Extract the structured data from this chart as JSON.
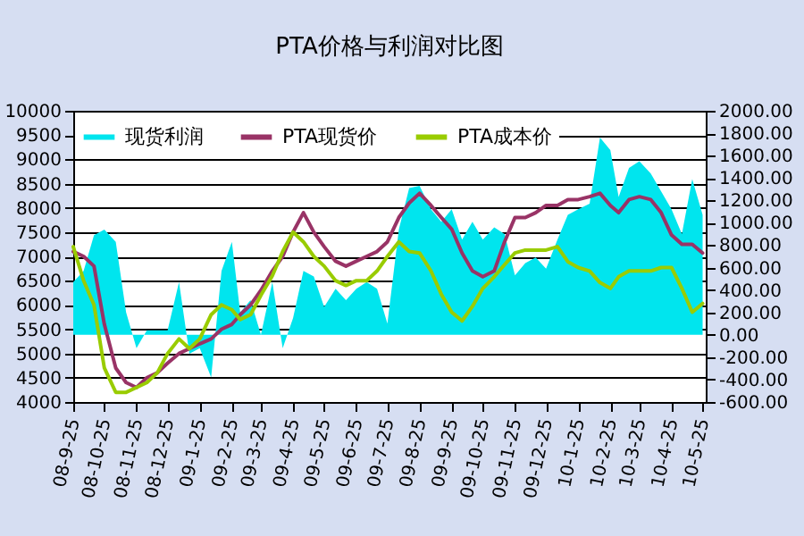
{
  "chart_data": {
    "type": "line",
    "title": "PTA价格与利润对比图",
    "x": [
      "2008-09-25",
      "2008-10-05",
      "2008-10-15",
      "2008-10-25",
      "2008-11-05",
      "2008-11-15",
      "2008-11-25",
      "2008-12-05",
      "2008-12-15",
      "2008-12-25",
      "2009-01-05",
      "2009-01-15",
      "2009-01-25",
      "2009-02-05",
      "2009-02-15",
      "2009-02-25",
      "2009-03-05",
      "2009-03-15",
      "2009-03-25",
      "2009-04-05",
      "2009-04-15",
      "2009-04-25",
      "2009-05-05",
      "2009-05-15",
      "2009-05-25",
      "2009-06-05",
      "2009-06-15",
      "2009-06-25",
      "2009-07-05",
      "2009-07-15",
      "2009-07-25",
      "2009-08-05",
      "2009-08-15",
      "2009-08-25",
      "2009-09-05",
      "2009-09-15",
      "2009-09-25",
      "2009-10-05",
      "2009-10-15",
      "2009-10-25",
      "2009-11-05",
      "2009-11-15",
      "2009-11-25",
      "2009-12-05",
      "2009-12-15",
      "2009-12-25",
      "2010-01-05",
      "2010-01-15",
      "2010-01-25",
      "2010-02-05",
      "2010-02-15",
      "2010-02-25",
      "2010-03-05",
      "2010-03-15",
      "2010-03-25",
      "2010-04-05",
      "2010-04-15",
      "2010-04-25",
      "2010-05-05",
      "2010-05-15",
      "2010-05-25"
    ],
    "series": [
      {
        "name": "现货利润",
        "type": "area",
        "axis": "y2",
        "color": "#00e5ee",
        "values": [
          470,
          570,
          890,
          940,
          830,
          200,
          -120,
          40,
          40,
          40,
          470,
          -170,
          -120,
          -380,
          570,
          830,
          200,
          310,
          0,
          470,
          -120,
          150,
          570,
          520,
          250,
          410,
          310,
          410,
          470,
          410,
          100,
          940,
          1310,
          1330,
          1120,
          1010,
          1120,
          850,
          1010,
          850,
          960,
          900,
          530,
          640,
          690,
          590,
          850,
          1070,
          1120,
          1170,
          1760,
          1650,
          1230,
          1490,
          1550,
          1440,
          1280,
          1120,
          900,
          1390,
          1070
        ]
      },
      {
        "name": "PTA现货价",
        "type": "line",
        "color": "#993366",
        "values": [
          7100,
          7000,
          6800,
          5600,
          4700,
          4400,
          4300,
          4500,
          4600,
          4800,
          5000,
          5100,
          5200,
          5300,
          5500,
          5600,
          5800,
          6000,
          6300,
          6700,
          7000,
          7500,
          7900,
          7500,
          7200,
          6900,
          6800,
          6900,
          7000,
          7100,
          7300,
          7800,
          8100,
          8300,
          8050,
          7800,
          7560,
          7070,
          6700,
          6580,
          6700,
          7300,
          7800,
          7800,
          7900,
          8050,
          8050,
          8170,
          8170,
          8230,
          8300,
          8050,
          7900,
          8170,
          8230,
          8170,
          7900,
          7440,
          7250,
          7250,
          7070
        ]
      },
      {
        "name": "PTA成本价",
        "type": "line",
        "color": "#99cc00",
        "values": [
          7200,
          6500,
          6000,
          4700,
          4200,
          4200,
          4300,
          4400,
          4600,
          5000,
          5300,
          5100,
          5300,
          5800,
          6000,
          5900,
          5700,
          5800,
          6200,
          6600,
          7100,
          7500,
          7300,
          7000,
          6800,
          6500,
          6400,
          6500,
          6500,
          6700,
          7000,
          7300,
          7100,
          7070,
          6700,
          6220,
          5850,
          5670,
          5970,
          6340,
          6580,
          6830,
          7070,
          7130,
          7130,
          7130,
          7200,
          6890,
          6770,
          6700,
          6460,
          6340,
          6580,
          6700,
          6700,
          6700,
          6770,
          6770,
          6340,
          5850,
          6030
        ]
      }
    ],
    "xlim": [
      "2008-09-25",
      "2010-05-28"
    ],
    "xticks": [
      {
        "value": "2008-09-25",
        "label": "08-9-25"
      },
      {
        "value": "2008-10-25",
        "label": "08-10-25"
      },
      {
        "value": "2008-11-25",
        "label": "08-11-25"
      },
      {
        "value": "2008-12-25",
        "label": "08-12-25"
      },
      {
        "value": "2009-01-25",
        "label": "09-1-25"
      },
      {
        "value": "2009-02-25",
        "label": "09-2-25"
      },
      {
        "value": "2009-03-25",
        "label": "09-3-25"
      },
      {
        "value": "2009-04-25",
        "label": "09-4-25"
      },
      {
        "value": "2009-05-25",
        "label": "09-5-25"
      },
      {
        "value": "2009-06-25",
        "label": "09-6-25"
      },
      {
        "value": "2009-07-25",
        "label": "09-7-25"
      },
      {
        "value": "2009-08-25",
        "label": "09-8-25"
      },
      {
        "value": "2009-09-25",
        "label": "09-9-25"
      },
      {
        "value": "2009-10-25",
        "label": "09-10-25"
      },
      {
        "value": "2009-11-25",
        "label": "09-11-25"
      },
      {
        "value": "2009-12-25",
        "label": "09-12-25"
      },
      {
        "value": "2010-01-25",
        "label": "10-1-25"
      },
      {
        "value": "2010-02-25",
        "label": "10-2-25"
      },
      {
        "value": "2010-03-25",
        "label": "10-3-25"
      },
      {
        "value": "2010-04-25",
        "label": "10-4-25"
      },
      {
        "value": "2010-05-25",
        "label": "10-5-25"
      }
    ],
    "ylim": [
      4000,
      10000
    ],
    "yticks": [
      4000,
      4500,
      5000,
      5500,
      6000,
      6500,
      7000,
      7500,
      8000,
      8500,
      9000,
      9500,
      10000
    ],
    "y2lim": [
      -600,
      2000
    ],
    "y2ticks": [
      {
        "value": -600,
        "label": "-600.00"
      },
      {
        "value": -400,
        "label": "-400.00"
      },
      {
        "value": -200,
        "label": "-200.00"
      },
      {
        "value": 0,
        "label": "0.00"
      },
      {
        "value": 200,
        "label": "200.00"
      },
      {
        "value": 400,
        "label": "400.00"
      },
      {
        "value": 600,
        "label": "600.00"
      },
      {
        "value": 800,
        "label": "800.00"
      },
      {
        "value": 1000,
        "label": "1000.00"
      },
      {
        "value": 1200,
        "label": "1200.00"
      },
      {
        "value": 1400,
        "label": "1400.00"
      },
      {
        "value": 1600,
        "label": "1600.00"
      },
      {
        "value": 1800,
        "label": "1800.00"
      },
      {
        "value": 2000,
        "label": "2000.00"
      }
    ],
    "grid": "y",
    "legend": "top"
  }
}
